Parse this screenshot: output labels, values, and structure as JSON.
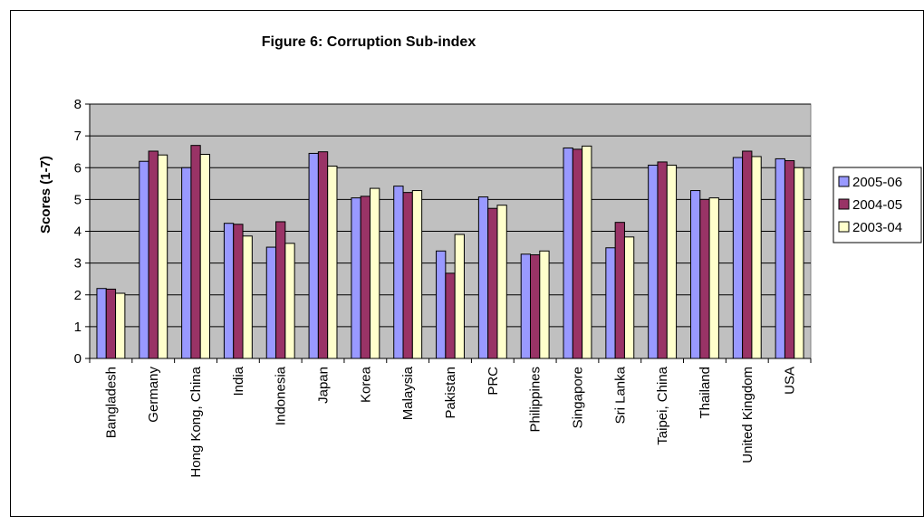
{
  "chart_data": {
    "type": "bar",
    "title": "Figure 6: Corruption Sub-index",
    "ylabel": "Scores (1-7)",
    "xlabel": "",
    "ylim": [
      0,
      8
    ],
    "yticks": [
      0,
      1,
      2,
      3,
      4,
      5,
      6,
      7,
      8
    ],
    "grid": true,
    "legend_position": "right",
    "plot_background": "#c0c0c0",
    "categories": [
      "Bangladesh",
      "Germany",
      "Hong Kong, China",
      "India",
      "Indonesia",
      "Japan",
      "Korea",
      "Malaysia",
      "Pakistan",
      "PRC",
      "Philippines",
      "Singapore",
      "Sri Lanka",
      "Taipei, China",
      "Thailand",
      "United Kingdom",
      "USA"
    ],
    "series": [
      {
        "name": "2005-06",
        "color": "#9999ff",
        "values": [
          2.2,
          6.2,
          6.0,
          4.25,
          3.5,
          6.45,
          5.05,
          5.42,
          3.38,
          5.08,
          3.28,
          6.62,
          3.48,
          6.08,
          5.28,
          6.32,
          6.28
        ]
      },
      {
        "name": "2004-05",
        "color": "#993366",
        "values": [
          2.18,
          6.52,
          6.7,
          4.22,
          4.3,
          6.5,
          5.1,
          5.22,
          2.68,
          4.72,
          3.26,
          6.58,
          4.28,
          6.18,
          5.0,
          6.52,
          6.22
        ]
      },
      {
        "name": "2003-04",
        "color": "#ffffcc",
        "values": [
          2.05,
          6.4,
          6.42,
          3.85,
          3.62,
          6.05,
          5.35,
          5.28,
          3.9,
          4.82,
          3.38,
          6.68,
          3.82,
          6.08,
          5.05,
          6.35,
          6.0
        ]
      }
    ]
  }
}
